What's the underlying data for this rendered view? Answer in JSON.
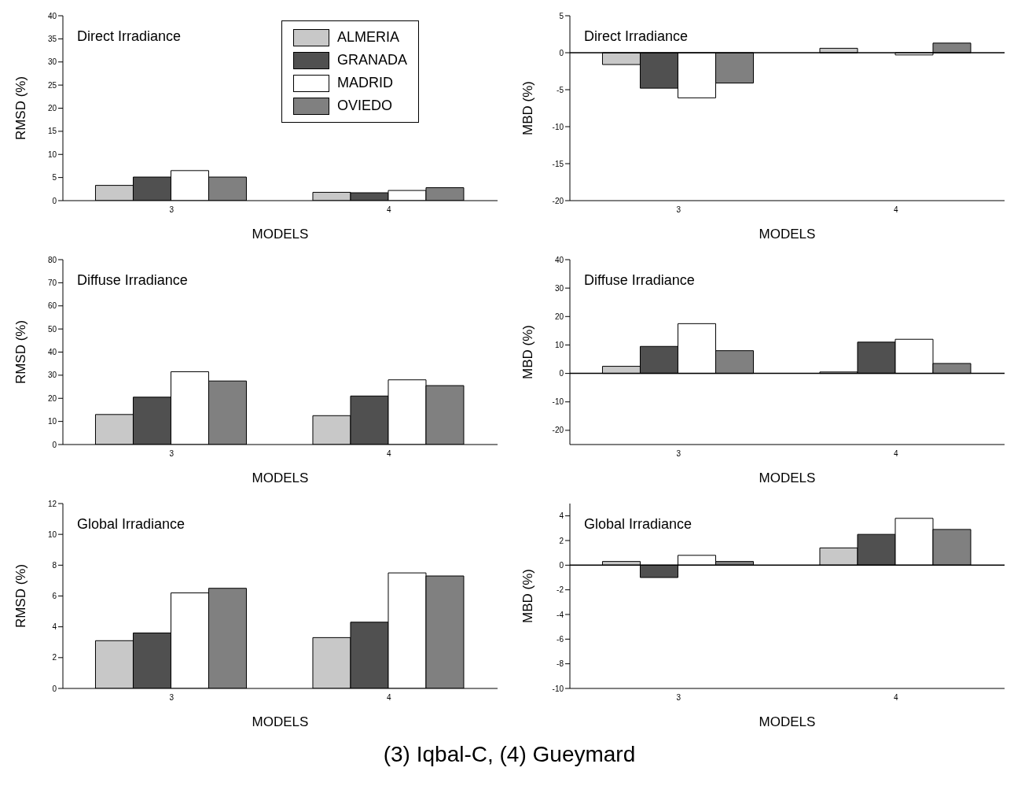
{
  "chart_data": [
    {
      "type": "bar",
      "title": "Direct Irradiance",
      "xlabel": "MODELS",
      "ylabel": "RMSD (%)",
      "categories": [
        "3",
        "4"
      ],
      "ylim": [
        0,
        40
      ],
      "yticks": [
        0,
        5,
        10,
        15,
        20,
        25,
        30,
        35,
        40
      ],
      "grid": false,
      "legend": "top",
      "series": [
        {
          "name": "ALMERIA",
          "color": "#c8c8c8",
          "values": [
            3.3,
            1.8
          ]
        },
        {
          "name": "GRANADA",
          "color": "#505050",
          "values": [
            5.1,
            1.7
          ]
        },
        {
          "name": "MADRID",
          "color": "#ffffff",
          "values": [
            6.5,
            2.2
          ]
        },
        {
          "name": "OVIEDO",
          "color": "#808080",
          "values": [
            5.1,
            2.8
          ]
        }
      ]
    },
    {
      "type": "bar",
      "title": "Direct Irradiance",
      "xlabel": "MODELS",
      "ylabel": "MBD (%)",
      "categories": [
        "3",
        "4"
      ],
      "ylim": [
        -20,
        5
      ],
      "yticks": [
        -20,
        -15,
        -10,
        -5,
        0,
        5
      ],
      "grid": false,
      "ref_lines": [
        {
          "axis": "y",
          "value": 0
        }
      ],
      "series": [
        {
          "color": "#c8c8c8",
          "values": [
            -1.6,
            0.6
          ]
        },
        {
          "color": "#505050",
          "values": [
            -4.8,
            0
          ]
        },
        {
          "color": "#ffffff",
          "values": [
            -6.1,
            -0.3
          ]
        },
        {
          "color": "#808080",
          "values": [
            -4.1,
            1.3
          ]
        }
      ]
    },
    {
      "type": "bar",
      "title": "Diffuse Irradiance",
      "xlabel": "MODELS",
      "ylabel": "RMSD (%)",
      "categories": [
        "3",
        "4"
      ],
      "ylim": [
        0,
        80
      ],
      "yticks": [
        0,
        10,
        20,
        30,
        40,
        50,
        60,
        70,
        80
      ],
      "grid": false,
      "series": [
        {
          "color": "#c8c8c8",
          "values": [
            13,
            12.5
          ]
        },
        {
          "color": "#505050",
          "values": [
            20.5,
            21
          ]
        },
        {
          "color": "#ffffff",
          "values": [
            31.5,
            28
          ]
        },
        {
          "color": "#808080",
          "values": [
            27.5,
            25.5
          ]
        }
      ]
    },
    {
      "type": "bar",
      "title": "Diffuse Irradiance",
      "xlabel": "MODELS",
      "ylabel": "MBD (%)",
      "categories": [
        "3",
        "4"
      ],
      "ylim": [
        -25,
        40
      ],
      "yticks": [
        -20,
        -10,
        0,
        10,
        20,
        30,
        40
      ],
      "grid": false,
      "ref_lines": [
        {
          "axis": "y",
          "value": 0
        }
      ],
      "series": [
        {
          "color": "#c8c8c8",
          "values": [
            2.5,
            0.5
          ]
        },
        {
          "color": "#505050",
          "values": [
            9.5,
            11
          ]
        },
        {
          "color": "#ffffff",
          "values": [
            17.5,
            12
          ]
        },
        {
          "color": "#808080",
          "values": [
            8,
            3.5
          ]
        }
      ]
    },
    {
      "type": "bar",
      "title": "Global Irradiance",
      "xlabel": "MODELS",
      "ylabel": "RMSD (%)",
      "categories": [
        "3",
        "4"
      ],
      "ylim": [
        0,
        12
      ],
      "yticks": [
        0,
        2,
        4,
        6,
        8,
        10,
        12
      ],
      "grid": false,
      "series": [
        {
          "color": "#c8c8c8",
          "values": [
            3.1,
            3.3
          ]
        },
        {
          "color": "#505050",
          "values": [
            3.6,
            4.3
          ]
        },
        {
          "color": "#ffffff",
          "values": [
            6.2,
            7.5
          ]
        },
        {
          "color": "#808080",
          "values": [
            6.5,
            7.3
          ]
        }
      ]
    },
    {
      "type": "bar",
      "title": "Global Irradiance",
      "xlabel": "MODELS",
      "ylabel": "MBD (%)",
      "categories": [
        "3",
        "4"
      ],
      "ylim": [
        -10,
        5
      ],
      "yticks": [
        -10,
        -8,
        -6,
        -4,
        -2,
        0,
        2,
        4
      ],
      "grid": false,
      "ref_lines": [
        {
          "axis": "y",
          "value": 0
        }
      ],
      "annotations": [
        "(3) Iqbal-C, (4) Gueymard"
      ],
      "series": [
        {
          "color": "#c8c8c8",
          "values": [
            0.3,
            1.4
          ]
        },
        {
          "color": "#505050",
          "values": [
            -1.0,
            2.5
          ]
        },
        {
          "color": "#ffffff",
          "values": [
            0.8,
            3.8
          ]
        },
        {
          "color": "#808080",
          "values": [
            0.3,
            2.9
          ]
        }
      ]
    }
  ]
}
